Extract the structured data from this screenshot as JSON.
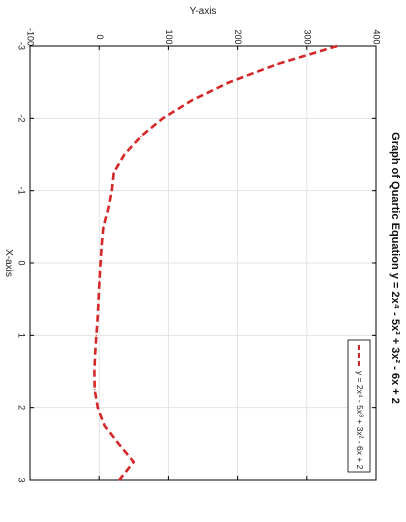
{
  "chart_data": {
    "type": "line",
    "orientation": "rotated-90-clockwise",
    "title": "Graph of Quartic Equation y = 2x⁴ - 5x³ + 3x² - 6x + 2",
    "xlabel": "X-axis",
    "ylabel": "Y-axis",
    "xlim": [
      -3,
      3
    ],
    "ylim": [
      -100,
      400
    ],
    "x_ticks": [
      "-3",
      "-2",
      "-1",
      "0",
      "1",
      "2",
      "3"
    ],
    "y_ticks": [
      "-100",
      "0",
      "100",
      "200",
      "300",
      "400"
    ],
    "grid": true,
    "legend_position": "top-right",
    "series": [
      {
        "name": "y = 2x⁴ - 5x³ + 3x² - 6x + 2",
        "color": "#d62728",
        "line_style": "dashed",
        "x": [
          -3,
          -2.75,
          -2.5,
          -2.25,
          -2,
          -1.75,
          -1.5,
          -1.25,
          -1,
          -0.75,
          -0.5,
          -0.25,
          0,
          0.25,
          0.5,
          0.75,
          1,
          1.25,
          1.5,
          1.75,
          2,
          2.25,
          2.5,
          2.75,
          3
        ],
        "y": [
          344,
          257.4,
          188.1,
          134,
          92,
          60.2,
          36.4,
          21,
          18,
          13.1,
          6.2,
          3.8,
          2,
          0.4,
          -0.8,
          -2.2,
          -4,
          -5.8,
          -7,
          -6.5,
          -2,
          8,
          28,
          50,
          29
        ]
      }
    ]
  }
}
